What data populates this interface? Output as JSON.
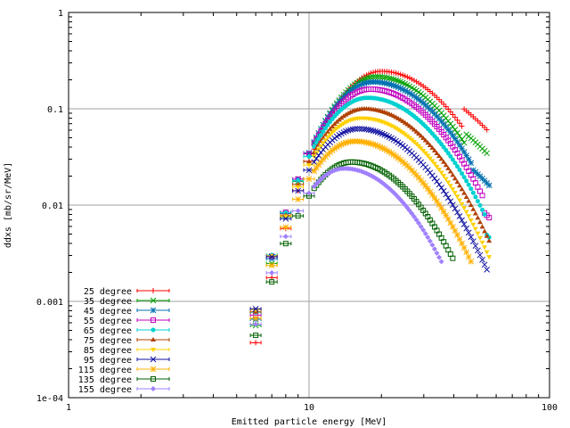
{
  "chart_data": {
    "type": "scatter",
    "title": "",
    "xlabel": "Emitted particle energy [MeV]",
    "ylabel": "ddxs [mb/sr/MeV]",
    "xscale": "log",
    "yscale": "log",
    "xlim": [
      1,
      100
    ],
    "ylim": [
      0.0001,
      1
    ],
    "x_ticks": [
      {
        "value": 1,
        "label": "1"
      },
      {
        "value": 10,
        "label": "10"
      },
      {
        "value": 100,
        "label": "100"
      }
    ],
    "y_ticks": [
      {
        "value": 1,
        "label": "1"
      },
      {
        "value": 0.1,
        "label": "0.1"
      },
      {
        "value": 0.01,
        "label": "0.01"
      },
      {
        "value": 0.001,
        "label": "0.001"
      },
      {
        "value": 0.0001,
        "label": "1e-04"
      }
    ],
    "grid": true,
    "legend_position": "bottom-left",
    "series": [
      {
        "name": "25 degree",
        "color": "#ff0000",
        "marker": "plus",
        "peak_x": 20,
        "peak_y": 0.245,
        "width": 0.42,
        "start_x": 6,
        "end_x": 55,
        "knee_y": 0.1
      },
      {
        "name": "35 degree",
        "color": "#00a000",
        "marker": "x",
        "peak_x": 19,
        "peak_y": 0.215,
        "width": 0.42,
        "start_x": 6,
        "end_x": 56,
        "knee_y": 0.055
      },
      {
        "name": "45 degree",
        "color": "#0070b0",
        "marker": "star",
        "peak_x": 18.5,
        "peak_y": 0.19,
        "width": 0.42,
        "start_x": 6,
        "end_x": 57,
        "knee_y": 0.026
      },
      {
        "name": "55 degree",
        "color": "#c000c0",
        "marker": "square",
        "peak_x": 18,
        "peak_y": 0.16,
        "width": 0.42,
        "start_x": 6,
        "end_x": 57,
        "knee_y": 0.012
      },
      {
        "name": "65 degree",
        "color": "#00d0d0",
        "marker": "circle",
        "peak_x": 17.5,
        "peak_y": 0.13,
        "width": 0.42,
        "start_x": 6,
        "end_x": 57,
        "knee_y": 0.0075
      },
      {
        "name": "75 degree",
        "color": "#b04000",
        "marker": "triangle",
        "peak_x": 17,
        "peak_y": 0.1,
        "width": 0.42,
        "start_x": 6,
        "end_x": 57,
        "knee_y": 0.0035
      },
      {
        "name": "85 degree",
        "color": "#ffd000",
        "marker": "triangle-down",
        "peak_x": 16.5,
        "peak_y": 0.08,
        "width": 0.42,
        "start_x": 6,
        "end_x": 57,
        "knee_y": 0.002
      },
      {
        "name": "95 degree",
        "color": "#1010a0",
        "marker": "x",
        "peak_x": 16,
        "peak_y": 0.062,
        "width": 0.42,
        "start_x": 6,
        "end_x": 56,
        "knee_y": 0.0012
      },
      {
        "name": "115 degree",
        "color": "#ffb000",
        "marker": "star",
        "peak_x": 15.5,
        "peak_y": 0.046,
        "width": 0.41,
        "start_x": 6,
        "end_x": 48,
        "knee_y": 0.0011
      },
      {
        "name": "135 degree",
        "color": "#006000",
        "marker": "square",
        "peak_x": 15,
        "peak_y": 0.028,
        "width": 0.4,
        "start_x": 6,
        "end_x": 40,
        "knee_y": 0.0009
      },
      {
        "name": "155 degree",
        "color": "#a080ff",
        "marker": "diamond",
        "peak_x": 14,
        "peak_y": 0.024,
        "width": 0.39,
        "start_x": 6,
        "end_x": 36,
        "knee_y": 0.0009
      }
    ]
  }
}
